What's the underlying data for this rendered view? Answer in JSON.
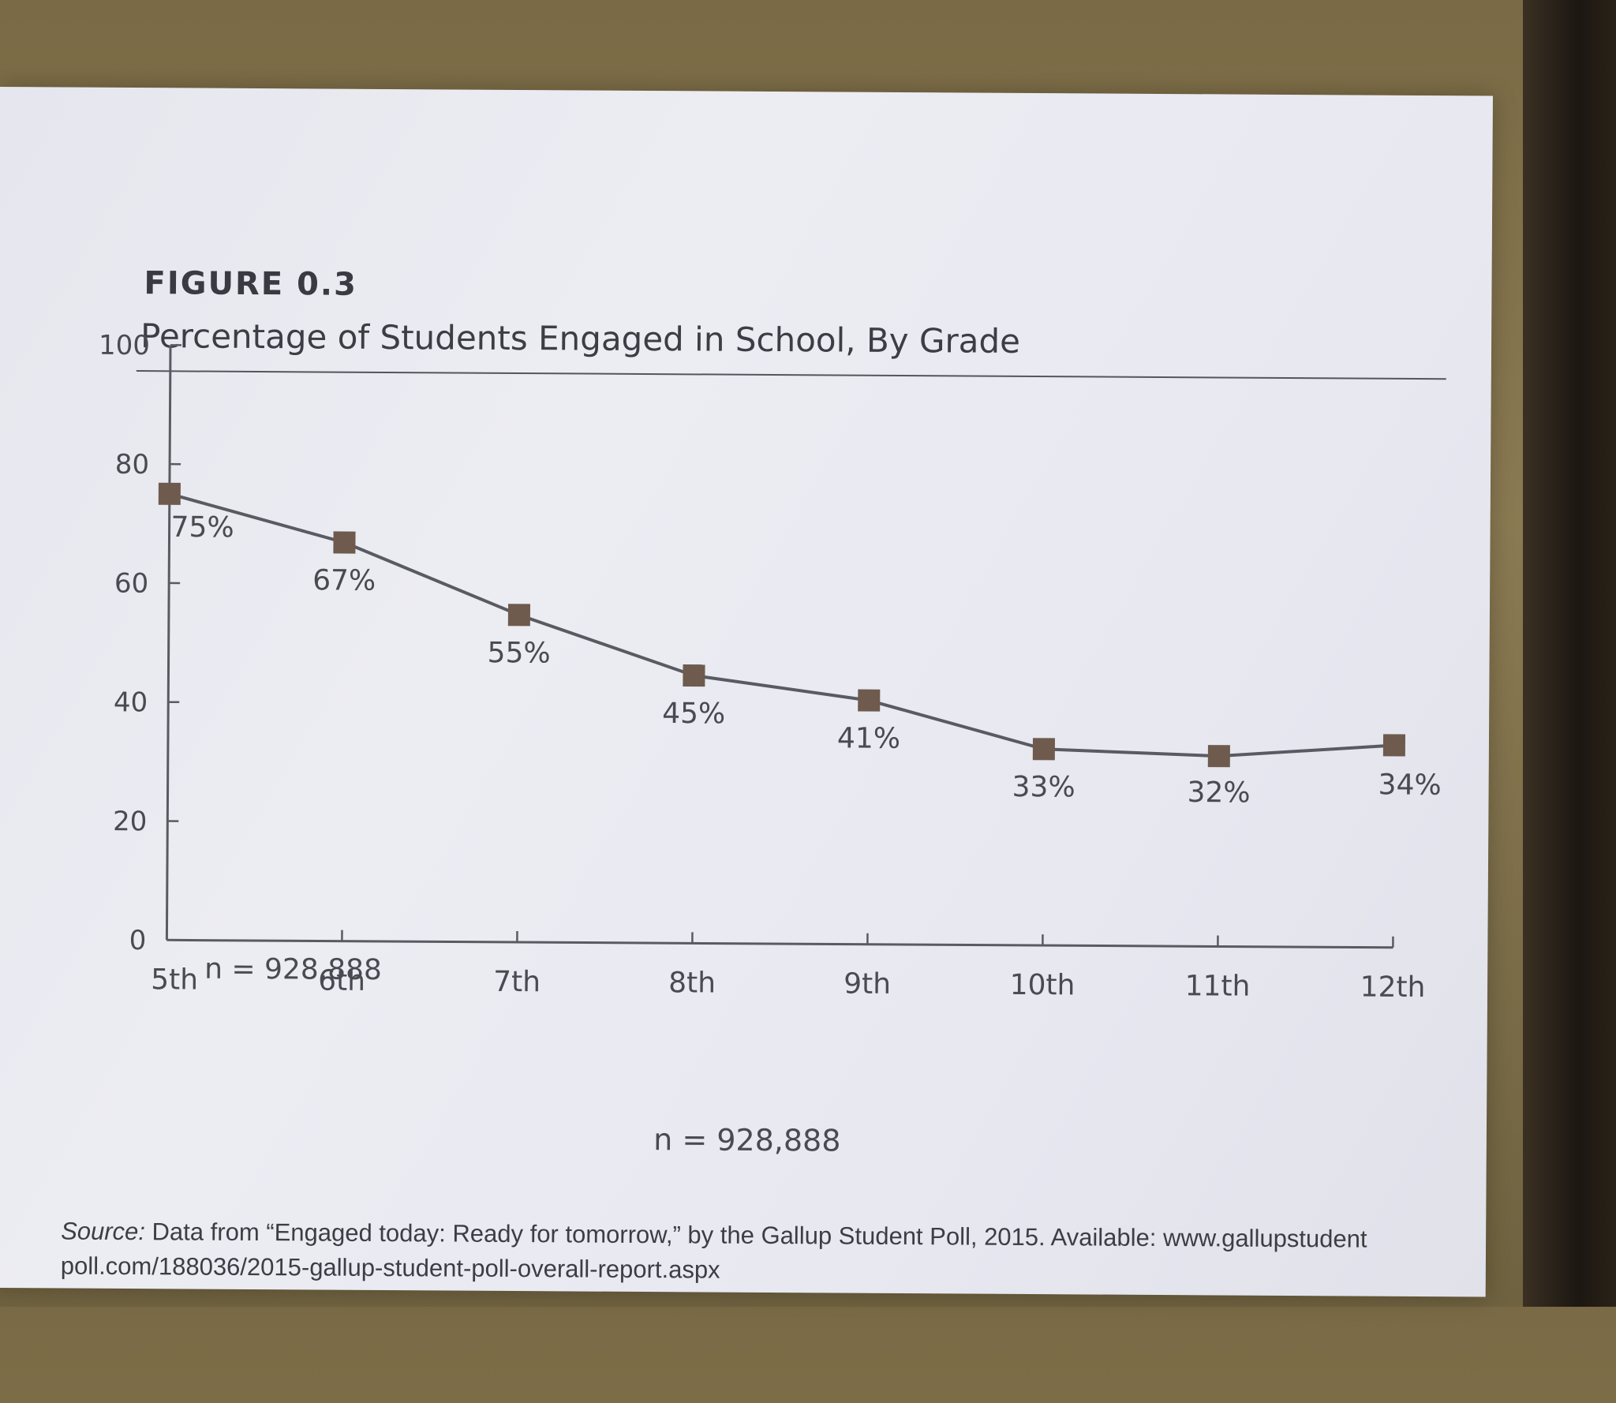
{
  "figure": {
    "label": "FIGURE 0.3",
    "title": "Percentage of Students Engaged in School, By Grade"
  },
  "chart_data": {
    "type": "line",
    "categories": [
      "5th",
      "6th",
      "7th",
      "8th",
      "9th",
      "10th",
      "11th",
      "12th"
    ],
    "values": [
      75,
      67,
      55,
      45,
      41,
      33,
      32,
      34
    ],
    "data_labels": [
      "75%",
      "67%",
      "55%",
      "45%",
      "41%",
      "33%",
      "32%",
      "34%"
    ],
    "ylim": [
      0,
      100
    ],
    "yticks": [
      "0",
      "20",
      "40",
      "60",
      "80",
      "100"
    ],
    "marker": "square",
    "grid": false,
    "annotations": [
      "n = 928,888"
    ],
    "colors": {
      "line": "#5a5a62",
      "marker": "#6e5b4e",
      "text": "#4a4a52"
    }
  },
  "footer": {
    "n_note": "n = 928,888",
    "source_label": "Source:",
    "source_text": "Data from “Engaged today: Ready for tomorrow,” by the Gallup Student Poll, 2015. Available: www.gallupstudent poll.com/188036/2015-gallup-student-poll-overall-report.aspx"
  }
}
